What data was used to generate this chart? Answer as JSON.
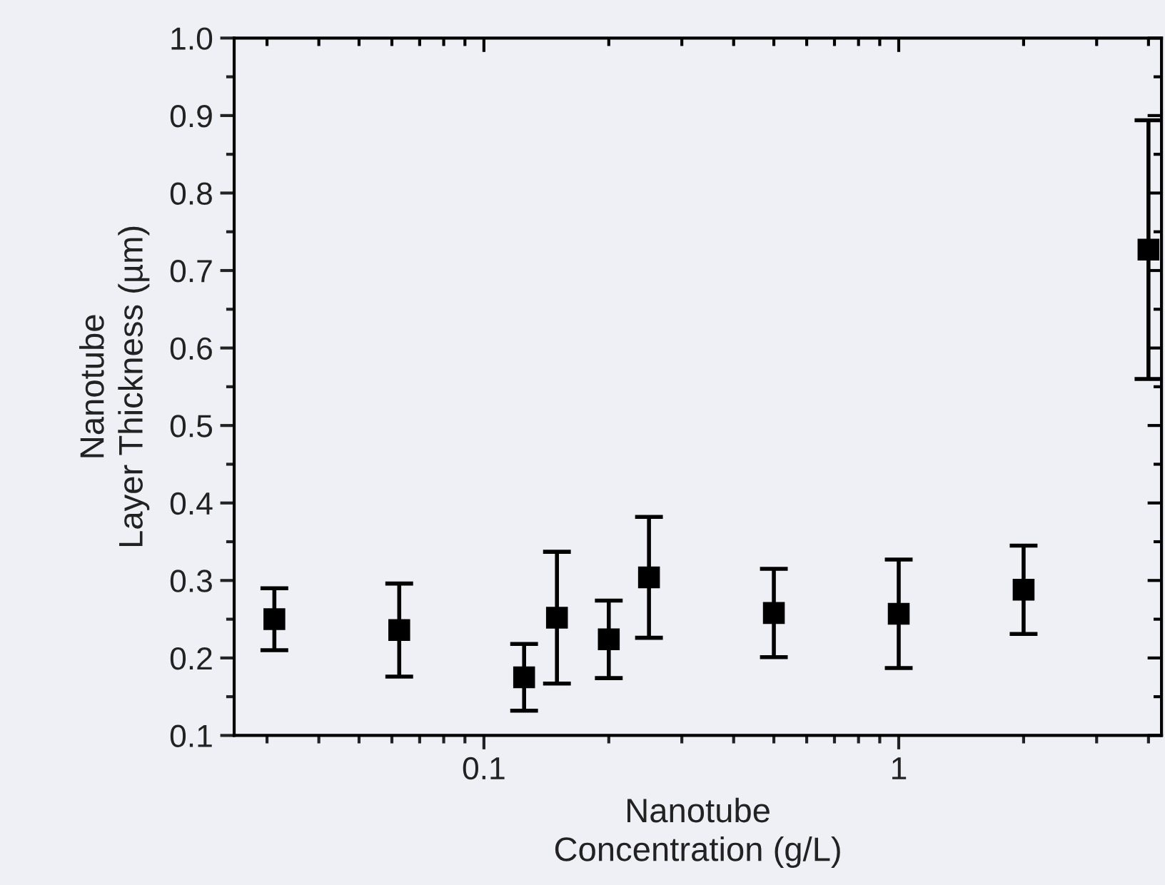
{
  "chart_data": {
    "type": "scatter",
    "xlabel": "Nanotube\nConcentration (g/L)",
    "ylabel": "Nanotube\nLayer Thickness (µm)",
    "x": [
      0.03125,
      0.0625,
      0.125,
      0.15,
      0.2,
      0.25,
      0.5,
      1,
      2,
      4
    ],
    "series": [
      {
        "color": "#000000",
        "values": [
          0.25,
          0.236,
          0.175,
          0.252,
          0.224,
          0.304,
          0.258,
          0.257,
          0.288,
          0.727
        ],
        "errors": [
          0.04,
          0.06,
          0.043,
          0.085,
          0.05,
          0.078,
          0.057,
          0.07,
          0.057,
          0.167
        ]
      }
    ],
    "log": "x",
    "xlim": [
      0.025,
      4.3
    ],
    "xticks": [
      0.1,
      1
    ],
    "ylim": [
      0.1,
      1.0
    ],
    "yticks": [
      0.1,
      0.2,
      0.3,
      0.4,
      0.5,
      0.6,
      0.7,
      0.8,
      0.9,
      {
        "value": 1,
        "label": "1.0"
      }
    ],
    "marker": "square",
    "grid": false,
    "legend": false
  }
}
